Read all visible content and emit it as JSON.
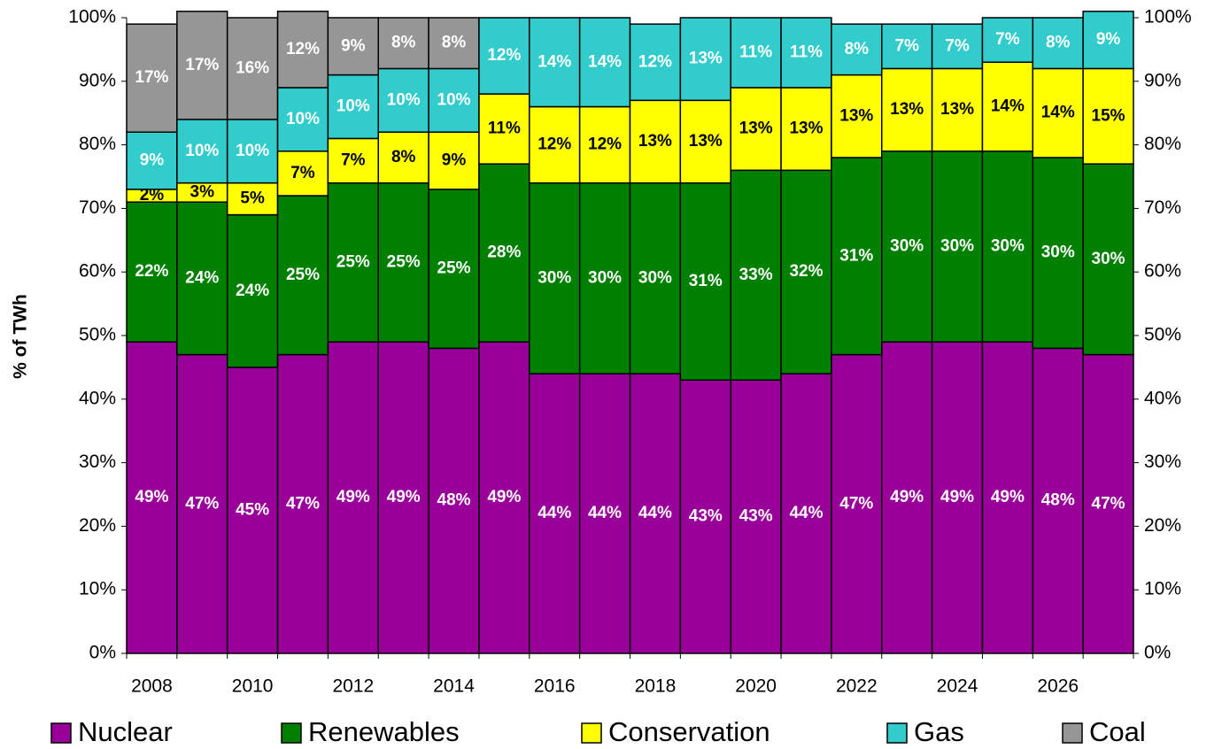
{
  "chart_data": {
    "type": "stacked_bar",
    "y_label": "% of TWh",
    "categories": [
      "2008",
      null,
      "2010",
      null,
      "2012",
      null,
      "2014",
      null,
      "2016",
      null,
      "2018",
      null,
      "2020",
      null,
      "2022",
      null,
      "2024",
      null,
      "2026",
      null
    ],
    "series": [
      {
        "name": "Nuclear",
        "color": "#990099",
        "values": [
          49,
          47,
          45,
          47,
          49,
          49,
          48,
          49,
          44,
          44,
          44,
          43,
          43,
          44,
          47,
          49,
          49,
          49,
          48,
          47
        ],
        "value_labels": [
          "49%",
          "47%",
          "45%",
          "47%",
          "49%",
          "49%",
          "48%",
          "49%",
          "44%",
          "44%",
          "44%",
          "43%",
          "43%",
          "44%",
          "47%",
          "49%",
          "49%",
          "49%",
          "48%",
          "47%"
        ]
      },
      {
        "name": "Renewables",
        "color": "#008000",
        "values": [
          22,
          24,
          24,
          25,
          25,
          25,
          25,
          28,
          30,
          30,
          30,
          31,
          33,
          32,
          31,
          30,
          30,
          30,
          30,
          30
        ],
        "value_labels": [
          "22%",
          "24%",
          "24%",
          "25%",
          "25%",
          "25%",
          "25%",
          "28%",
          "30%",
          "30%",
          "30%",
          "31%",
          "33%",
          "32%",
          "31%",
          "30%",
          "30%",
          "30%",
          "30%",
          "30%"
        ]
      },
      {
        "name": "Conservation",
        "color": "#ffff00",
        "values": [
          2,
          3,
          5,
          7,
          7,
          8,
          9,
          11,
          12,
          12,
          13,
          13,
          13,
          13,
          13,
          13,
          13,
          14,
          14,
          15
        ],
        "value_labels": [
          "2%",
          "3%",
          "5%",
          "7%",
          "7%",
          "8%",
          "9%",
          "11%",
          "12%",
          "12%",
          "13%",
          "13%",
          "13%",
          "13%",
          "13%",
          "13%",
          "13%",
          "14%",
          "14%",
          "15%"
        ]
      },
      {
        "name": "Gas",
        "color": "#33cccc",
        "values": [
          9,
          10,
          10,
          10,
          10,
          10,
          10,
          12,
          14,
          14,
          12,
          13,
          11,
          11,
          8,
          7,
          7,
          7,
          8,
          9
        ],
        "value_labels": [
          "9%",
          "10%",
          "10%",
          "10%",
          "10%",
          "10%",
          "10%",
          "12%",
          "14%",
          "14%",
          "12%",
          "13%",
          "11%",
          "11%",
          "8%",
          "7%",
          "7%",
          "7%",
          "8%",
          "9%"
        ]
      },
      {
        "name": "Coal",
        "color": "#969696",
        "values": [
          17,
          17,
          16,
          12,
          9,
          8,
          8,
          null,
          null,
          null,
          null,
          null,
          null,
          null,
          null,
          null,
          null,
          null,
          null,
          null
        ],
        "value_labels": [
          "17%",
          "17%",
          "16%",
          "12%",
          "9%",
          "8%",
          "8%",
          null,
          null,
          null,
          null,
          null,
          null,
          null,
          null,
          null,
          null,
          null,
          null,
          null
        ]
      }
    ],
    "ylim": [
      0,
      100
    ],
    "yticks": [
      {
        "value": 0,
        "label": "0%"
      },
      {
        "value": 10,
        "label": "10%"
      },
      {
        "value": 20,
        "label": "20%"
      },
      {
        "value": 30,
        "label": "30%"
      },
      {
        "value": 40,
        "label": "40%"
      },
      {
        "value": 50,
        "label": "50%"
      },
      {
        "value": 60,
        "label": "60%"
      },
      {
        "value": 70,
        "label": "70%"
      },
      {
        "value": 80,
        "label": "80%"
      },
      {
        "value": 90,
        "label": "90%"
      },
      {
        "value": 100,
        "label": "100%"
      }
    ],
    "y2lim": [
      0,
      100
    ],
    "y2ticks": [
      {
        "value": 0,
        "label": "0%"
      },
      {
        "value": 10,
        "label": "10%"
      },
      {
        "value": 20,
        "label": "20%"
      },
      {
        "value": 30,
        "label": "30%"
      },
      {
        "value": 40,
        "label": "40%"
      },
      {
        "value": 50,
        "label": "50%"
      },
      {
        "value": 60,
        "label": "60%"
      },
      {
        "value": 70,
        "label": "70%"
      },
      {
        "value": 80,
        "label": "80%"
      },
      {
        "value": 90,
        "label": "90%"
      },
      {
        "value": 100,
        "label": "100%"
      }
    ],
    "legend": "bottom"
  }
}
